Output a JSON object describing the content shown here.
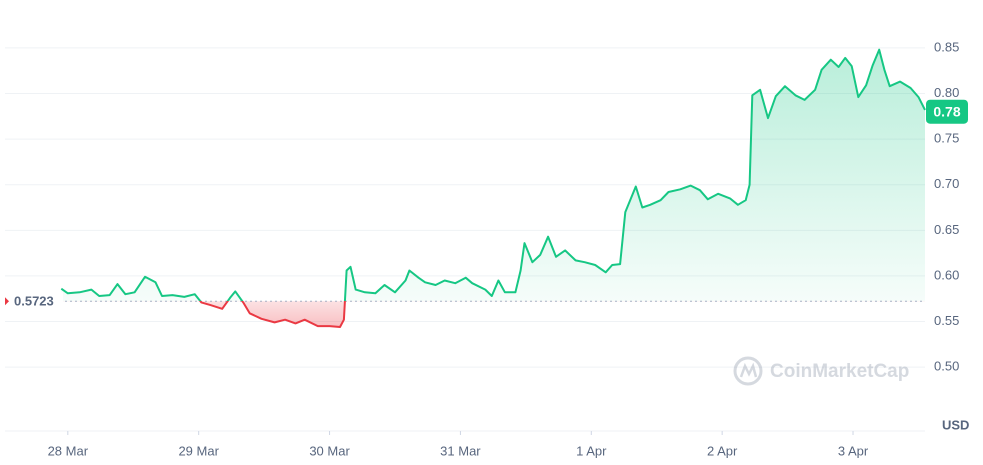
{
  "chart_data": {
    "type": "line",
    "x": [
      -0.05,
      0,
      0.09,
      0.18,
      0.24,
      0.32,
      0.38,
      0.44,
      0.51,
      0.59,
      0.67,
      0.72,
      0.8,
      0.89,
      0.97,
      1.02,
      1.09,
      1.18,
      1.24,
      1.28,
      1.34,
      1.39,
      1.48,
      1.58,
      1.66,
      1.74,
      1.81,
      1.91,
      2.0,
      2.08,
      2.11,
      2.13,
      2.16,
      2.2,
      2.27,
      2.35,
      2.42,
      2.5,
      2.58,
      2.61,
      2.68,
      2.73,
      2.81,
      2.88,
      2.96,
      3.04,
      3.09,
      3.19,
      3.24,
      3.29,
      3.34,
      3.42,
      3.46,
      3.49,
      3.55,
      3.61,
      3.67,
      3.73,
      3.8,
      3.88,
      3.95,
      4.03,
      4.11,
      4.16,
      4.22,
      4.26,
      4.34,
      4.39,
      4.45,
      4.53,
      4.59,
      4.68,
      4.76,
      4.83,
      4.89,
      4.97,
      5.06,
      5.12,
      5.18,
      5.21,
      5.23,
      5.29,
      5.35,
      5.41,
      5.48,
      5.56,
      5.63,
      5.71,
      5.76,
      5.83,
      5.89,
      5.94,
      5.99,
      6.04,
      6.1,
      6.15,
      6.2,
      6.24,
      6.28,
      6.36,
      6.44,
      6.5,
      6.55
    ],
    "series": [
      {
        "color": "#16c784",
        "down_color": "#ea3943",
        "values": [
          0.586,
          0.581,
          0.582,
          0.585,
          0.578,
          0.579,
          0.591,
          0.58,
          0.582,
          0.599,
          0.593,
          0.578,
          0.579,
          0.577,
          0.58,
          0.571,
          0.568,
          0.564,
          0.576,
          0.583,
          0.571,
          0.559,
          0.553,
          0.549,
          0.552,
          0.548,
          0.552,
          0.545,
          0.545,
          0.544,
          0.552,
          0.606,
          0.61,
          0.585,
          0.582,
          0.581,
          0.59,
          0.582,
          0.595,
          0.606,
          0.598,
          0.593,
          0.59,
          0.595,
          0.592,
          0.598,
          0.592,
          0.585,
          0.578,
          0.595,
          0.582,
          0.582,
          0.606,
          0.636,
          0.615,
          0.623,
          0.643,
          0.621,
          0.628,
          0.617,
          0.615,
          0.612,
          0.604,
          0.612,
          0.613,
          0.67,
          0.698,
          0.675,
          0.678,
          0.683,
          0.692,
          0.695,
          0.699,
          0.694,
          0.684,
          0.69,
          0.685,
          0.678,
          0.683,
          0.7,
          0.798,
          0.804,
          0.773,
          0.797,
          0.808,
          0.798,
          0.793,
          0.804,
          0.826,
          0.837,
          0.829,
          0.839,
          0.83,
          0.796,
          0.809,
          0.831,
          0.848,
          0.826,
          0.808,
          0.813,
          0.806,
          0.796,
          0.782
        ]
      }
    ],
    "xlim": [
      -0.48,
      6.55
    ],
    "xticks": [
      {
        "value": 0,
        "label": "28 Mar"
      },
      {
        "value": 1,
        "label": "29 Mar"
      },
      {
        "value": 2,
        "label": "30 Mar"
      },
      {
        "value": 3,
        "label": "31 Mar"
      },
      {
        "value": 4,
        "label": "1 Apr"
      },
      {
        "value": 5,
        "label": "2 Apr"
      },
      {
        "value": 6,
        "label": "3 Apr"
      }
    ],
    "ylim": [
      0.43,
      0.897
    ],
    "yticks": [
      {
        "value": 0.5,
        "label": "0.50"
      },
      0.55,
      {
        "value": 0.6,
        "label": "0.60"
      },
      0.65,
      {
        "value": 0.7,
        "label": "0.70"
      },
      0.75,
      {
        "value": 0.8,
        "label": "0.80"
      },
      0.85
    ],
    "grid": true,
    "baseline": 0.5723,
    "current_price": 0.78,
    "unit_label": "USD",
    "watermark": "CoinMarketCap"
  }
}
